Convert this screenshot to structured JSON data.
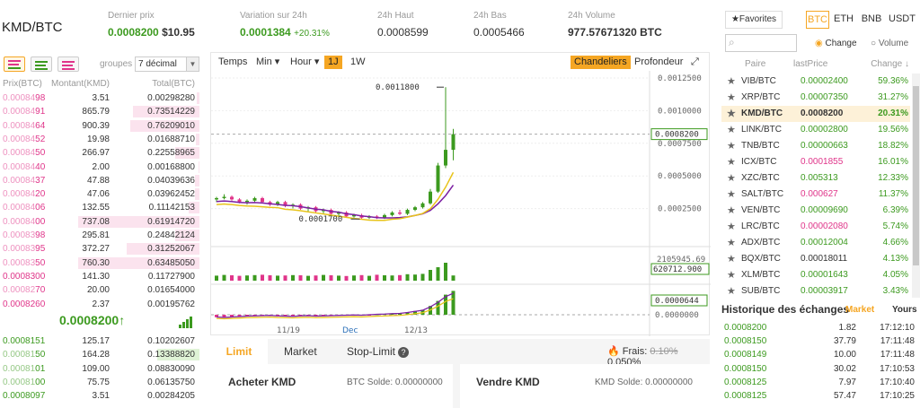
{
  "header": {
    "pair": "KMD/BTC",
    "stats": [
      {
        "label": "Dernier prix",
        "value": "0.0008200",
        "extra": "$10.95"
      },
      {
        "label": "Variation sur 24h",
        "value": "0.0001384",
        "extra": "+20.31%"
      },
      {
        "label": "24h Haut",
        "value": "0.0008599",
        "extra": ""
      },
      {
        "label": "24h Bas",
        "value": "0.0005466",
        "extra": ""
      },
      {
        "label": "24h Volume",
        "value": "977.57671320 BTC",
        "extra": ""
      }
    ]
  },
  "orderbook": {
    "groups_label": "groupes",
    "decimals": "7 décimal",
    "headers": [
      "Prix(BTC)",
      "Montant(KMD)",
      "Total(BTC)"
    ],
    "asks": [
      {
        "pd": "0.00084",
        "ps": "98",
        "amount": "3.51",
        "total": "0.00298280",
        "depth": 0.02
      },
      {
        "pd": "0.00084",
        "ps": "91",
        "amount": "865.79",
        "total": "0.73514229",
        "depth": 0.55
      },
      {
        "pd": "0.00084",
        "ps": "64",
        "amount": "900.39",
        "total": "0.76209010",
        "depth": 0.57
      },
      {
        "pd": "0.00084",
        "ps": "52",
        "amount": "19.98",
        "total": "0.01688710",
        "depth": 0.03
      },
      {
        "pd": "0.00084",
        "ps": "50",
        "amount": "266.97",
        "total": "0.22558965",
        "depth": 0.2
      },
      {
        "pd": "0.00084",
        "ps": "40",
        "amount": "2.00",
        "total": "0.00168800",
        "depth": 0.01
      },
      {
        "pd": "0.00084",
        "ps": "37",
        "amount": "47.88",
        "total": "0.04039636",
        "depth": 0.04
      },
      {
        "pd": "0.00084",
        "ps": "20",
        "amount": "47.06",
        "total": "0.03962452",
        "depth": 0.04
      },
      {
        "pd": "0.00084",
        "ps": "06",
        "amount": "132.55",
        "total": "0.11142153",
        "depth": 0.09
      },
      {
        "pd": "0.00084",
        "ps": "00",
        "amount": "737.08",
        "total": "0.61914720",
        "depth": 1.0
      },
      {
        "pd": "0.00083",
        "ps": "98",
        "amount": "295.81",
        "total": "0.24842124",
        "depth": 0.2
      },
      {
        "pd": "0.00083",
        "ps": "95",
        "amount": "372.27",
        "total": "0.31252067",
        "depth": 0.6
      },
      {
        "pd": "0.00083",
        "ps": "50",
        "amount": "760.30",
        "total": "0.63485050",
        "depth": 1.0
      },
      {
        "pd": "0.0008300",
        "ps": "",
        "amount": "141.30",
        "total": "0.11727900",
        "depth": 0.0
      },
      {
        "pd": "0.00082",
        "ps": "70",
        "amount": "20.00",
        "total": "0.01654000",
        "depth": 0.0
      },
      {
        "pd": "0.0008260",
        "ps": "",
        "amount": "2.37",
        "total": "0.00195762",
        "depth": 0.0
      }
    ],
    "last_price": "0.0008200",
    "last_arrow": "↑",
    "bids": [
      {
        "pd": "0.0008151",
        "ps": "",
        "amount": "125.17",
        "total": "0.10202607",
        "depth": 0.0
      },
      {
        "pd": "0.00081",
        "ps": "50",
        "amount": "164.28",
        "total": "0.13388820",
        "depth": 0.35
      },
      {
        "pd": "0.00081",
        "ps": "01",
        "amount": "109.00",
        "total": "0.08830090",
        "depth": 0.0
      },
      {
        "pd": "0.00081",
        "ps": "00",
        "amount": "75.75",
        "total": "0.06135750",
        "depth": 0.0
      },
      {
        "pd": "0.0008097",
        "ps": "",
        "amount": "3.51",
        "total": "0.00284205",
        "depth": 0.0
      }
    ]
  },
  "chart": {
    "toolbar_left": [
      "Temps",
      "Min ▾",
      "Hour ▾",
      "1J",
      "1W"
    ],
    "active_interval": "1J",
    "toolbar_right": [
      "Chandeliers",
      "Profondeur"
    ],
    "active_view": "Chandeliers",
    "price_ticks": [
      "0.0012500",
      "0.0010000",
      "0.0007500",
      "0.0005000",
      "0.0002500"
    ],
    "price_tag": "0.0008200",
    "volume_max": "2105945.69",
    "volume_tag": "620712.900",
    "macd_tag": "0.0000644",
    "macd_zero": "0.0000000",
    "high_label": "0.0011800",
    "low_label": "0.0001700",
    "date_labels": [
      "11/19",
      "Dec",
      "12/13"
    ],
    "price_axis": {
      "min": 0.0,
      "max": 0.00125
    },
    "candles": [
      [
        0.00032,
        0.00034,
        0.0003,
        0.00033
      ],
      [
        0.00033,
        0.00036,
        0.00032,
        0.00034
      ],
      [
        0.00034,
        0.00035,
        0.00031,
        0.00032
      ],
      [
        0.00032,
        0.00033,
        0.00029,
        0.0003
      ],
      [
        0.0003,
        0.00032,
        0.00028,
        0.00031
      ],
      [
        0.00031,
        0.00034,
        0.0003,
        0.00033
      ],
      [
        0.00033,
        0.00034,
        0.00029,
        0.0003
      ],
      [
        0.0003,
        0.00031,
        0.00027,
        0.00028
      ],
      [
        0.00028,
        0.00031,
        0.00027,
        0.0003
      ],
      [
        0.0003,
        0.00031,
        0.00026,
        0.00027
      ],
      [
        0.00027,
        0.00029,
        0.00025,
        0.00028
      ],
      [
        0.00028,
        0.00029,
        0.00024,
        0.00025
      ],
      [
        0.00025,
        0.00027,
        0.00023,
        0.00026
      ],
      [
        0.00026,
        0.00027,
        0.00022,
        0.00023
      ],
      [
        0.00023,
        0.00025,
        0.00021,
        0.00024
      ],
      [
        0.00024,
        0.00025,
        0.0002,
        0.00021
      ],
      [
        0.00021,
        0.00023,
        0.00019,
        0.00022
      ],
      [
        0.00022,
        0.00023,
        0.00018,
        0.00019
      ],
      [
        0.00019,
        0.00021,
        0.00018,
        0.0002
      ],
      [
        0.0002,
        0.00021,
        0.00017,
        0.00018
      ],
      [
        0.00018,
        0.0002,
        0.00017,
        0.00019
      ],
      [
        0.00019,
        0.0002,
        0.00017,
        0.00018
      ],
      [
        0.00018,
        0.00021,
        0.00017,
        0.0002
      ],
      [
        0.0002,
        0.00023,
        0.00019,
        0.00022
      ],
      [
        0.00022,
        0.00024,
        0.0002,
        0.00021
      ],
      [
        0.00021,
        0.00025,
        0.0002,
        0.00024
      ],
      [
        0.00024,
        0.00027,
        0.00023,
        0.00026
      ],
      [
        0.00026,
        0.0003,
        0.00025,
        0.00029
      ],
      [
        0.00029,
        0.0004,
        0.00028,
        0.00038
      ],
      [
        0.00038,
        0.0006,
        0.00037,
        0.00058
      ],
      [
        0.00058,
        0.00118,
        0.00056,
        0.0007
      ],
      [
        0.0007,
        0.00086,
        0.00062,
        0.00082
      ]
    ],
    "volumes": [
      0.28,
      0.32,
      0.3,
      0.27,
      0.29,
      0.31,
      0.33,
      0.3,
      0.28,
      0.29,
      0.31,
      0.3,
      0.27,
      0.29,
      0.32,
      0.3,
      0.28,
      0.26,
      0.29,
      0.31,
      0.27,
      0.33,
      0.3,
      0.29,
      0.31,
      0.36,
      0.34,
      0.38,
      0.6,
      0.75,
      1.0,
      0.29
    ],
    "macd": [
      -0.1,
      -0.12,
      -0.1,
      -0.08,
      -0.06,
      -0.05,
      -0.04,
      -0.03,
      -0.05,
      -0.06,
      -0.07,
      -0.05,
      -0.04,
      -0.06,
      -0.05,
      -0.04,
      -0.03,
      -0.02,
      -0.01,
      -0.02,
      0.0,
      0.02,
      0.03,
      0.05,
      0.06,
      0.1,
      0.15,
      0.2,
      0.35,
      0.55,
      0.8,
      0.95
    ]
  },
  "form": {
    "tabs": [
      "Limit",
      "Market",
      "Stop-Limit"
    ],
    "active_tab": "Limit",
    "fee_label": "Frais:",
    "fee_old": "0.10%",
    "fee_new": "0.050%",
    "buy_title": "Acheter KMD",
    "buy_balance": "BTC Solde: 0.00000000",
    "sell_title": "Vendre KMD",
    "sell_balance": "KMD Solde: 0.00000000"
  },
  "markets": {
    "favorites_label": "Favorites",
    "bases": [
      "BTC",
      "ETH",
      "BNB",
      "USDT"
    ],
    "active_base": "BTC",
    "radio_change": "Change",
    "radio_volume": "Volume",
    "headers": [
      "Paire",
      "lastPrice",
      "Change ↓"
    ],
    "rows": [
      {
        "pair": "VIB/BTC",
        "price": "0.00002400",
        "change": "59.36%",
        "down": false
      },
      {
        "pair": "XRP/BTC",
        "price": "0.00007350",
        "change": "31.27%",
        "down": false
      },
      {
        "pair": "KMD/BTC",
        "price": "0.0008200",
        "change": "20.31%",
        "down": false
      },
      {
        "pair": "LINK/BTC",
        "price": "0.00002800",
        "change": "19.56%",
        "down": false
      },
      {
        "pair": "TNB/BTC",
        "price": "0.00000663",
        "change": "18.82%",
        "down": false
      },
      {
        "pair": "ICX/BTC",
        "price": "0.0001855",
        "change": "16.01%",
        "down": true
      },
      {
        "pair": "XZC/BTC",
        "price": "0.005313",
        "change": "12.33%",
        "down": false
      },
      {
        "pair": "SALT/BTC",
        "price": "0.000627",
        "change": "11.37%",
        "down": true
      },
      {
        "pair": "VEN/BTC",
        "price": "0.00009690",
        "change": "6.39%",
        "down": false
      },
      {
        "pair": "LRC/BTC",
        "price": "0.00002080",
        "change": "5.74%",
        "down": true
      },
      {
        "pair": "ADX/BTC",
        "price": "0.00012004",
        "change": "4.66%",
        "down": false
      },
      {
        "pair": "BQX/BTC",
        "price": "0.00018011",
        "change": "4.13%",
        "down": null
      },
      {
        "pair": "XLM/BTC",
        "price": "0.00001643",
        "change": "4.05%",
        "down": false
      },
      {
        "pair": "SUB/BTC",
        "price": "0.00003917",
        "change": "3.43%",
        "down": false
      }
    ],
    "selected_pair": "KMD/BTC"
  },
  "history": {
    "title": "Historique des échanges",
    "tabs": [
      "Market",
      "Yours"
    ],
    "rows": [
      {
        "price": "0.0008200",
        "amount": "1.82",
        "time": "17:12:10"
      },
      {
        "price": "0.0008150",
        "amount": "37.79",
        "time": "17:11:48"
      },
      {
        "price": "0.0008149",
        "amount": "10.00",
        "time": "17:11:48"
      },
      {
        "price": "0.0008150",
        "amount": "30.02",
        "time": "17:10:53"
      },
      {
        "price": "0.0008125",
        "amount": "7.97",
        "time": "17:10:40"
      },
      {
        "price": "0.0008125",
        "amount": "57.47",
        "time": "17:10:25"
      }
    ]
  },
  "colors": {
    "green": "#3c9a1f",
    "red": "#e0358a",
    "accent": "#f5a623",
    "purple": "#7b1fa2",
    "yellow": "#e8c41b"
  }
}
